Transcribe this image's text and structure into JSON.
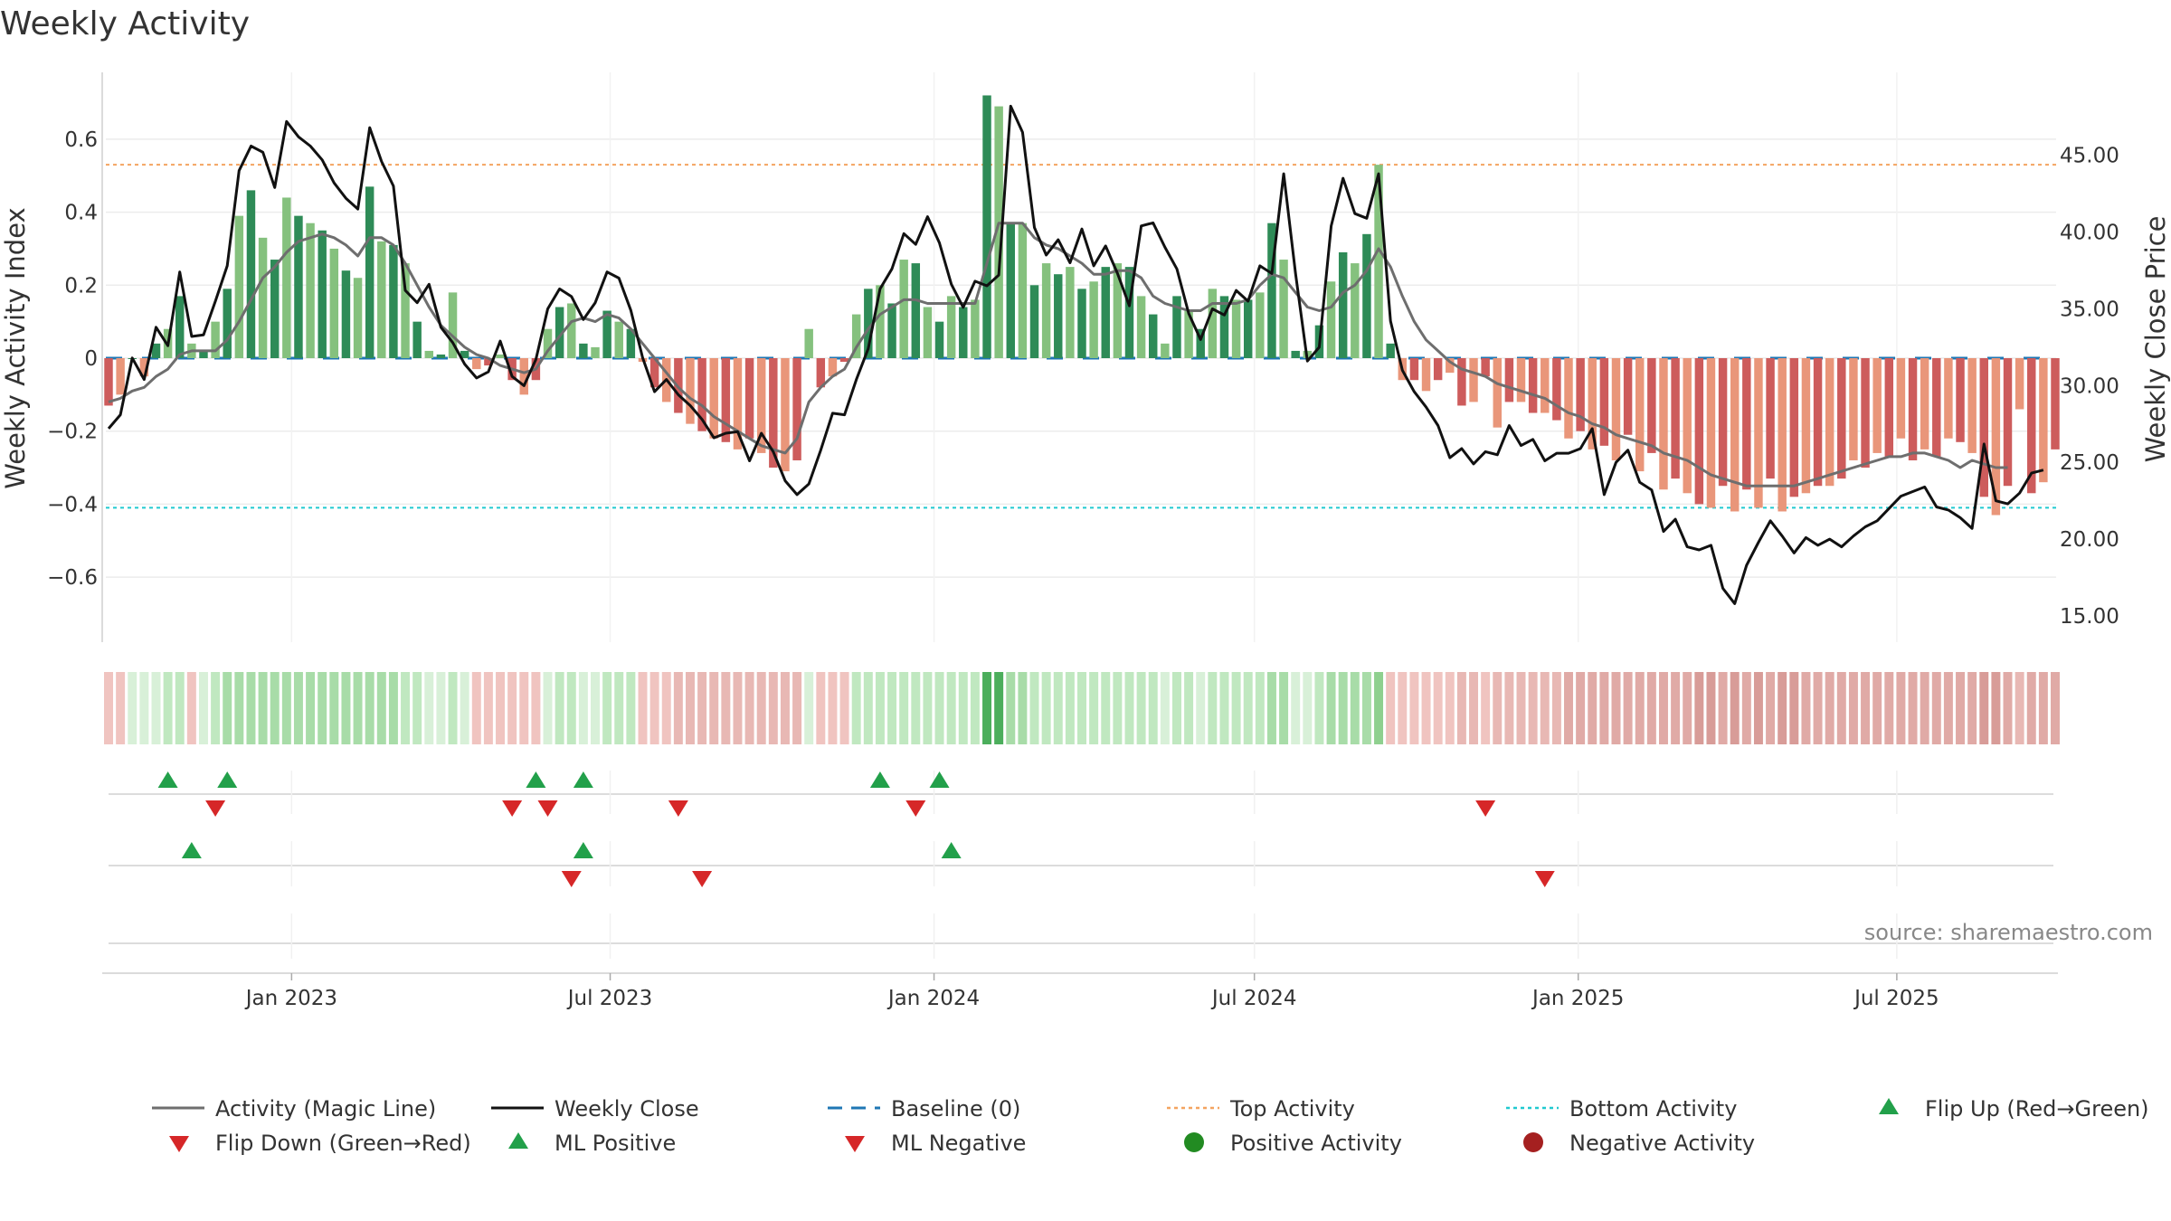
{
  "chart_data": {
    "type": "bar+line",
    "title": "Weekly Activity",
    "ylabel_left": "Weekly Activity Index",
    "ylabel_right": "Weekly Close Price",
    "source": "source: sharemaestro.com",
    "x_date_range": [
      "2022-09-19",
      "2025-09-29"
    ],
    "x_ticks": [
      {
        "date": "2023-01-01",
        "label": "Jan 2023"
      },
      {
        "date": "2023-07-01",
        "label": "Jul 2023"
      },
      {
        "date": "2024-01-01",
        "label": "Jan 2024"
      },
      {
        "date": "2024-07-01",
        "label": "Jul 2024"
      },
      {
        "date": "2025-01-01",
        "label": "Jan 2025"
      },
      {
        "date": "2025-07-01",
        "label": "Jul 2025"
      }
    ],
    "left_axis": {
      "range": [
        -0.78,
        0.78
      ],
      "ticks": [
        {
          "v": 0.6,
          "label": "0.6"
        },
        {
          "v": 0.4,
          "label": "0.4"
        },
        {
          "v": 0.2,
          "label": "0.2"
        },
        {
          "v": 0,
          "label": "0"
        },
        {
          "v": -0.2,
          "label": "−0.2"
        },
        {
          "v": -0.4,
          "label": "−0.4"
        },
        {
          "v": -0.6,
          "label": "−0.6"
        }
      ]
    },
    "right_axis": {
      "range": [
        14.0,
        50.4
      ],
      "ticks": [
        {
          "v": 45,
          "label": "45.00"
        },
        {
          "v": 40,
          "label": "40.00"
        },
        {
          "v": 35,
          "label": "35.00"
        },
        {
          "v": 30,
          "label": "30.00"
        },
        {
          "v": 25,
          "label": "25.00"
        },
        {
          "v": 20,
          "label": "20.00"
        },
        {
          "v": 15,
          "label": "15.00"
        }
      ]
    },
    "top_activity": 0.53,
    "bottom_activity": -0.41,
    "baseline": 0,
    "activity": [
      -0.13,
      -0.1,
      0,
      -0.05,
      0.04,
      0.08,
      0.17,
      0.04,
      0.02,
      0.1,
      0.19,
      0.39,
      0.46,
      0.33,
      0.27,
      0.44,
      0.39,
      0.37,
      0.35,
      0.3,
      0.24,
      0.22,
      0.47,
      0.32,
      0.31,
      0.26,
      0.1,
      0.02,
      0.01,
      0.18,
      0.02,
      -0.03,
      -0.02,
      0.01,
      -0.06,
      -0.1,
      -0.06,
      0.08,
      0.14,
      0.15,
      0.04,
      0.03,
      0.13,
      0.1,
      0.08,
      -0.01,
      -0.08,
      -0.12,
      -0.15,
      -0.18,
      -0.2,
      -0.22,
      -0.23,
      -0.25,
      -0.22,
      -0.26,
      -0.3,
      -0.31,
      -0.28,
      0.08,
      -0.08,
      -0.05,
      -0.01,
      0.12,
      0.19,
      0.2,
      0.15,
      0.27,
      0.26,
      0.14,
      0.1,
      0.17,
      0.14,
      0.16,
      0.72,
      0.69,
      0.37,
      0.37,
      0.2,
      0.26,
      0.23,
      0.25,
      0.19,
      0.21,
      0.25,
      0.26,
      0.25,
      0.17,
      0.12,
      0.04,
      0.17,
      0.13,
      0.08,
      0.19,
      0.17,
      0.16,
      0.16,
      0.18,
      0.37,
      0.27,
      0.02,
      0.02,
      0.09,
      0.21,
      0.29,
      0.26,
      0.34,
      0.53,
      0.04,
      -0.06,
      -0.06,
      -0.09,
      -0.06,
      -0.04,
      -0.13,
      -0.12,
      -0.05,
      -0.19,
      -0.12,
      -0.12,
      -0.15,
      -0.15,
      -0.17,
      -0.22,
      -0.2,
      -0.25,
      -0.24,
      -0.28,
      -0.21,
      -0.31,
      -0.26,
      -0.36,
      -0.33,
      -0.37,
      -0.4,
      -0.41,
      -0.35,
      -0.42,
      -0.36,
      -0.41,
      -0.33,
      -0.42,
      -0.38,
      -0.37,
      -0.35,
      -0.35,
      -0.33,
      -0.28,
      -0.3,
      -0.26,
      -0.27,
      -0.22,
      -0.28,
      -0.25,
      -0.27,
      -0.22,
      -0.23,
      -0.26,
      -0.38,
      -0.43,
      -0.35,
      -0.14,
      -0.37,
      -0.34,
      -0.25
    ],
    "magic_line": [
      -0.12,
      -0.11,
      -0.09,
      -0.08,
      -0.05,
      -0.03,
      0.01,
      0.02,
      0.02,
      0.02,
      0.05,
      0.1,
      0.16,
      0.22,
      0.25,
      0.29,
      0.32,
      0.33,
      0.34,
      0.33,
      0.31,
      0.28,
      0.33,
      0.33,
      0.31,
      0.26,
      0.2,
      0.14,
      0.09,
      0.06,
      0.03,
      0.01,
      0.0,
      -0.02,
      -0.03,
      -0.04,
      -0.03,
      0.02,
      0.06,
      0.1,
      0.11,
      0.1,
      0.12,
      0.11,
      0.08,
      0.04,
      0.0,
      -0.04,
      -0.08,
      -0.11,
      -0.13,
      -0.16,
      -0.18,
      -0.2,
      -0.22,
      -0.24,
      -0.25,
      -0.26,
      -0.22,
      -0.12,
      -0.08,
      -0.05,
      -0.03,
      0.03,
      0.08,
      0.12,
      0.14,
      0.16,
      0.16,
      0.15,
      0.15,
      0.15,
      0.15,
      0.15,
      0.26,
      0.37,
      0.37,
      0.37,
      0.33,
      0.31,
      0.3,
      0.28,
      0.26,
      0.23,
      0.23,
      0.24,
      0.24,
      0.22,
      0.17,
      0.15,
      0.14,
      0.13,
      0.13,
      0.15,
      0.15,
      0.15,
      0.16,
      0.2,
      0.23,
      0.22,
      0.18,
      0.14,
      0.13,
      0.14,
      0.18,
      0.2,
      0.24,
      0.3,
      0.25,
      0.17,
      0.1,
      0.05,
      0.02,
      -0.01,
      -0.03,
      -0.04,
      -0.05,
      -0.07,
      -0.08,
      -0.09,
      -0.1,
      -0.11,
      -0.13,
      -0.15,
      -0.16,
      -0.18,
      -0.19,
      -0.21,
      -0.22,
      -0.23,
      -0.24,
      -0.26,
      -0.27,
      -0.28,
      -0.3,
      -0.32,
      -0.33,
      -0.34,
      -0.35,
      -0.35,
      -0.35,
      -0.35,
      -0.35,
      -0.34,
      -0.33,
      -0.32,
      -0.31,
      -0.3,
      -0.29,
      -0.28,
      -0.27,
      -0.27,
      -0.26,
      -0.26,
      -0.27,
      -0.28,
      -0.3,
      -0.28,
      -0.29,
      -0.3,
      -0.3
    ],
    "weekly_close": [
      27.2,
      28.1,
      31.8,
      30.4,
      33.8,
      32.6,
      37.4,
      33.2,
      33.3,
      35.5,
      37.8,
      44.0,
      45.6,
      45.2,
      42.9,
      47.2,
      46.2,
      45.6,
      44.7,
      43.2,
      42.2,
      41.5,
      46.8,
      44.6,
      43.0,
      36.2,
      35.4,
      36.6,
      33.8,
      32.8,
      31.4,
      30.5,
      30.9,
      32.9,
      30.6,
      30.0,
      31.7,
      35.0,
      36.3,
      35.8,
      34.3,
      35.4,
      37.4,
      37.0,
      34.9,
      31.8,
      29.6,
      30.4,
      29.4,
      28.7,
      27.8,
      26.6,
      26.9,
      27.0,
      25.1,
      26.9,
      25.7,
      23.8,
      22.9,
      23.6,
      25.8,
      28.2,
      28.1,
      30.4,
      32.4,
      36.3,
      37.6,
      39.9,
      39.2,
      41.0,
      39.3,
      36.6,
      35.1,
      36.8,
      36.5,
      37.2,
      48.2,
      46.5,
      40.3,
      38.5,
      39.5,
      38.0,
      40.2,
      37.8,
      39.1,
      37.3,
      35.2,
      40.4,
      40.6,
      39.0,
      37.6,
      34.7,
      33.0,
      35.0,
      34.6,
      36.2,
      35.5,
      37.8,
      37.3,
      43.8,
      37.3,
      31.6,
      32.5,
      40.4,
      43.5,
      41.2,
      40.9,
      43.8,
      34.2,
      31.0,
      29.6,
      28.6,
      27.4,
      25.3,
      25.9,
      24.9,
      25.7,
      25.5,
      27.4,
      26.1,
      26.5,
      25.1,
      25.6,
      25.6,
      25.9,
      27.2,
      22.9,
      25.0,
      25.8,
      23.7,
      23.2,
      20.5,
      21.3,
      19.5,
      19.3,
      19.6,
      16.8,
      15.8,
      18.3,
      19.8,
      21.2,
      20.2,
      19.1,
      20.1,
      19.6,
      20.0,
      19.5,
      20.2,
      20.8,
      21.2,
      22.0,
      22.8,
      23.1,
      23.4,
      22.1,
      21.9,
      21.4,
      20.7,
      26.2,
      22.5,
      22.3,
      23.0,
      24.3,
      24.5
    ],
    "strip_colors": [
      "#f0c4c0",
      "#f0c4c0",
      "#d8f0d8",
      "#d8f0d8",
      "#d8f0d8",
      "#c0e8c0",
      "#c0e8c0",
      "#f0c4c0",
      "#d8f0d8",
      "#c0e8c0",
      "#a8dca8",
      "#a8dca8",
      "#a8dca8",
      "#a8dca8",
      "#a8dca8",
      "#a8dca8",
      "#a8dca8",
      "#a8dca8",
      "#a8dca8",
      "#a8dca8",
      "#a8dca8",
      "#a8dca8",
      "#a8dca8",
      "#a8dca8",
      "#a8dca8",
      "#c0e8c0",
      "#c0e8c0",
      "#d8f0d8",
      "#d8f0d8",
      "#c0e8c0",
      "#d8f0d8",
      "#f0c4c0",
      "#f0c4c0",
      "#f0c4c0",
      "#f0c4c0",
      "#f0c4c0",
      "#f0c4c0",
      "#d8f0d8",
      "#c0e8c0",
      "#c0e8c0",
      "#d8f0d8",
      "#d8f0d8",
      "#c0e8c0",
      "#c0e8c0",
      "#c0e8c0",
      "#f0c4c0",
      "#f0c4c0",
      "#f0c4c0",
      "#e8b8b4",
      "#e8b8b4",
      "#e8b8b4",
      "#e8b8b4",
      "#e8b8b4",
      "#e8b8b4",
      "#e8b8b4",
      "#e8b8b4",
      "#e8b8b4",
      "#e8b8b4",
      "#e8b8b4",
      "#d8f0d8",
      "#f0c4c0",
      "#f0c4c0",
      "#f0c4c0",
      "#c0e8c0",
      "#c0e8c0",
      "#c0e8c0",
      "#c0e8c0",
      "#c0e8c0",
      "#c0e8c0",
      "#c0e8c0",
      "#c0e8c0",
      "#c0e8c0",
      "#c0e8c0",
      "#c0e8c0",
      "#4cae5c",
      "#4cae5c",
      "#a8dca8",
      "#a8dca8",
      "#c0e8c0",
      "#c0e8c0",
      "#c0e8c0",
      "#c0e8c0",
      "#c0e8c0",
      "#c0e8c0",
      "#c0e8c0",
      "#c0e8c0",
      "#c0e8c0",
      "#c0e8c0",
      "#c0e8c0",
      "#d8f0d8",
      "#c0e8c0",
      "#c0e8c0",
      "#d8f0d8",
      "#c0e8c0",
      "#c0e8c0",
      "#c0e8c0",
      "#c0e8c0",
      "#c0e8c0",
      "#a8dca8",
      "#a8dca8",
      "#d8f0d8",
      "#d8f0d8",
      "#c0e8c0",
      "#a8dca8",
      "#a8dca8",
      "#a8dca8",
      "#a8dca8",
      "#8fd08f",
      "#f0c4c0",
      "#f0c4c0",
      "#f0c4c0",
      "#f0c4c0",
      "#f0c4c0",
      "#f0c4c0",
      "#e8b8b4",
      "#e8b8b4",
      "#f0c4c0",
      "#e8b8b4",
      "#e8b8b4",
      "#e8b8b4",
      "#e8b8b4",
      "#e8b8b4",
      "#e8b8b4",
      "#e0aaa6",
      "#e0aaa6",
      "#e0aaa6",
      "#e0aaa6",
      "#e0aaa6",
      "#e0aaa6",
      "#e0aaa6",
      "#e0aaa6",
      "#e0aaa6",
      "#e0aaa6",
      "#e0aaa6",
      "#d89c98",
      "#d89c98",
      "#e0aaa6",
      "#d89c98",
      "#e0aaa6",
      "#d89c98",
      "#e0aaa6",
      "#d89c98",
      "#d89c98",
      "#e0aaa6",
      "#e0aaa6",
      "#e0aaa6",
      "#e0aaa6",
      "#e0aaa6",
      "#e0aaa6",
      "#e0aaa6",
      "#e0aaa6",
      "#e0aaa6",
      "#e0aaa6",
      "#e0aaa6",
      "#e0aaa6",
      "#e0aaa6",
      "#e0aaa6",
      "#e0aaa6",
      "#d89c98",
      "#d89c98",
      "#e0aaa6",
      "#e8b8b4",
      "#e0aaa6",
      "#e0aaa6",
      "#e0aaa6"
    ],
    "flip_up_weeks": [
      5,
      10,
      36,
      40,
      65,
      70
    ],
    "flip_down_weeks": [
      9,
      34,
      37,
      48,
      68,
      116
    ],
    "ml_positive_weeks": [
      7,
      40,
      71
    ],
    "ml_negative_weeks": [
      39,
      50,
      121
    ],
    "legend": [
      {
        "label": "Activity (Magic Line)",
        "symbol": "line-grey"
      },
      {
        "label": "Weekly Close",
        "symbol": "line-black"
      },
      {
        "label": "Baseline (0)",
        "symbol": "dash-blue"
      },
      {
        "label": "Top Activity",
        "symbol": "dot-orange"
      },
      {
        "label": "Bottom Activity",
        "symbol": "dot-cyan"
      },
      {
        "label": "Flip Up (Red→Green)",
        "symbol": "tri-up-green"
      },
      {
        "label": "Flip Down (Green→Red)",
        "symbol": "tri-down-red"
      },
      {
        "label": "ML Positive",
        "symbol": "tri-up-green"
      },
      {
        "label": "ML Negative",
        "symbol": "tri-down-red"
      },
      {
        "label": "Positive Activity",
        "symbol": "circle-green"
      },
      {
        "label": "Negative Activity",
        "symbol": "circle-red"
      }
    ],
    "colors": {
      "pos_strong": "#2e8b57",
      "pos_weak": "#85c17e",
      "neg_strong": "#cd5c5c",
      "neg_weak": "#e9967a",
      "magic_line": "#6e6e6e",
      "close_line": "#111111",
      "baseline": "#1f77b4",
      "top_line": "#f4a460",
      "bottom_line": "#20c9d0",
      "marker_up": "#22a04a",
      "marker_down": "#d62728",
      "circle_green": "#228b22",
      "circle_red": "#a52020",
      "grid": "#ececec"
    }
  }
}
